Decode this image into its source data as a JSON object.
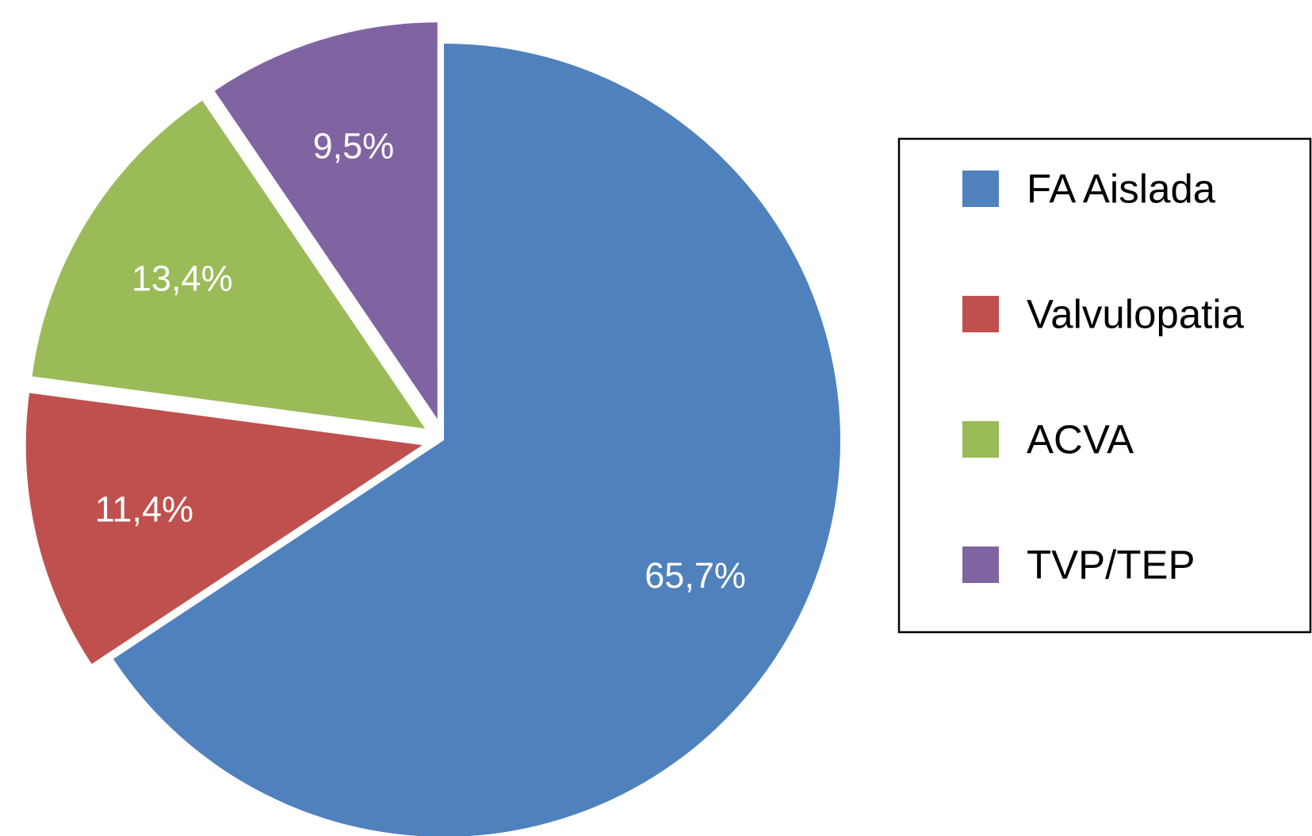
{
  "chart_data": {
    "type": "pie",
    "slices": [
      {
        "name": "FA Aislada",
        "value": 65.7,
        "label": "65,7%",
        "color": "#4F81BD",
        "exploded": false
      },
      {
        "name": "Valvulopatia",
        "value": 11.4,
        "label": "11,4%",
        "color": "#C0504D",
        "exploded": true
      },
      {
        "name": "ACVA",
        "value": 13.4,
        "label": "13,4%",
        "color": "#9BBB59",
        "exploded": true
      },
      {
        "name": "TVP/TEP",
        "value": 9.5,
        "label": "9,5%",
        "color": "#8064A2",
        "exploded": true
      }
    ],
    "start_angle": "12 o'clock",
    "direction": "clockwise",
    "legend": "right",
    "title": ""
  }
}
